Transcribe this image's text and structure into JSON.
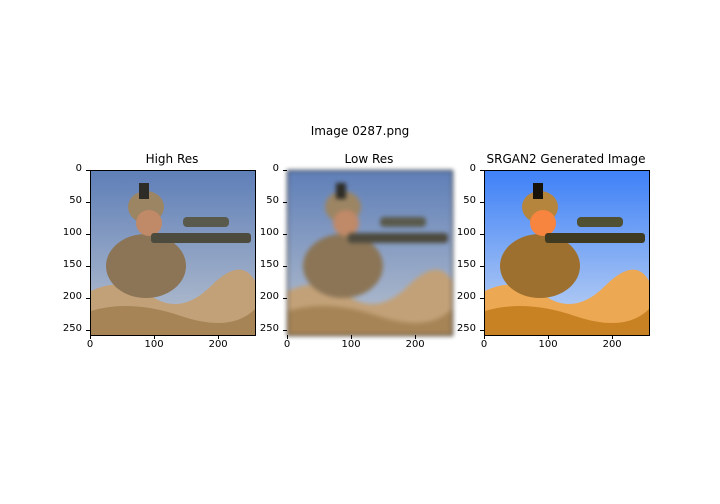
{
  "figure": {
    "suptitle": "Image 0287.png",
    "panels": [
      {
        "title": "High Res",
        "filter": "none"
      },
      {
        "title": "Low Res",
        "filter": "blur(2px)"
      },
      {
        "title": "SRGAN2 Generated Image",
        "filter": "saturate(1.6) contrast(1.3)"
      }
    ],
    "yticks": [
      "0",
      "50",
      "100",
      "150",
      "200",
      "250"
    ],
    "xticks": [
      "0",
      "100",
      "200"
    ]
  }
}
